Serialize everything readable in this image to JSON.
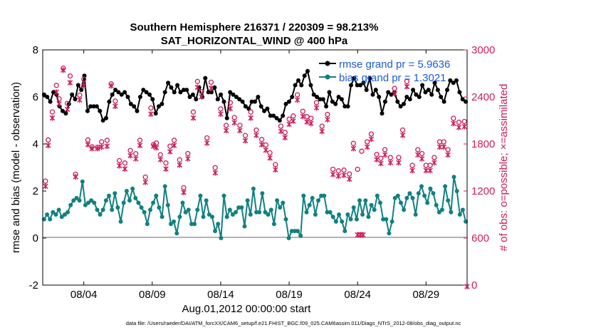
{
  "chart_data": {
    "type": "line",
    "title_line1": "Southern Hemisphere 216371 / 220309 = 98.213%",
    "title_line2": "SAT_HORIZONTAL_WIND @ 400 hPa",
    "xlabel": "Aug.01,2012 00:00:00 start",
    "ylabel_left": "rmse and bias (model - observation)",
    "ylabel_right": "# of obs: o=possible; ×=assimilated",
    "footer": "data file: /Users/raeder/DAI/ATM_forcXX/CAM6_setup/f.e21.FHIST_BGC.f09_025.CAM6assim.011/Diags_NTrS_2012-08/obs_diag_output.nc",
    "xlim": [
      1.0,
      32.0
    ],
    "ylim_left": [
      -2,
      8
    ],
    "ylim_right": [
      0,
      3000
    ],
    "x_ticks": [
      {
        "x": 4,
        "label": "08/04"
      },
      {
        "x": 9,
        "label": "08/09"
      },
      {
        "x": 14,
        "label": "08/14"
      },
      {
        "x": 19,
        "label": "08/19"
      },
      {
        "x": 24,
        "label": "08/24"
      },
      {
        "x": 29,
        "label": "08/29"
      }
    ],
    "y_ticks_left": [
      "-2",
      "0",
      "2",
      "4",
      "6",
      "8"
    ],
    "y_ticks_right": [
      "0",
      "600",
      "1200",
      "1800",
      "2400",
      "3000"
    ],
    "colors": {
      "rmse": "#000000",
      "bias": "#118080",
      "obs": "#cc1e58",
      "zero_line": "#b3b3b3",
      "legend_text": "#1a5cd8"
    },
    "series": [
      {
        "name": "rmse grand pr = 5.9636",
        "key": "rmse",
        "values": [
          6.1,
          6.0,
          5.8,
          6.2,
          6.1,
          5.6,
          5.4,
          5.3,
          5.7,
          6.1,
          5.9,
          6.5,
          6.3,
          6.9,
          5.4,
          5.6,
          5.6,
          5.6,
          5.4,
          5.0,
          5.1,
          5.8,
          6.1,
          6.3,
          6.2,
          6.1,
          6.2,
          6.0,
          5.7,
          5.6,
          5.4,
          6.0,
          6.3,
          6.2,
          6.1,
          5.9,
          5.3,
          5.6,
          5.7,
          6.2,
          6.6,
          6.4,
          6.2,
          6.5,
          6.2,
          6.3,
          6.3,
          6.0,
          6.1,
          5.9,
          6.4,
          6.0,
          6.8,
          6.2,
          6.2,
          6.4,
          5.9,
          6.1,
          5.8,
          5.1,
          6.2,
          6.1,
          6.0,
          5.9,
          5.8,
          5.6,
          5.5,
          5.8,
          5.8,
          6.0,
          5.6,
          5.4,
          5.5,
          5.2,
          5.2,
          5.1,
          5.0,
          5.2,
          5.7,
          5.8,
          6.0,
          6.5,
          6.7,
          6.5,
          6.9,
          7.1,
          6.5,
          6.1,
          6.0,
          5.9,
          5.9,
          5.6,
          6.2,
          5.8,
          5.7,
          6.0,
          5.9,
          5.6,
          5.6,
          6.5,
          6.8,
          6.5,
          6.5,
          6.6,
          6.3,
          6.8,
          6.1,
          6.3,
          6.0,
          5.3,
          5.8,
          6.2,
          6.1,
          6.2,
          5.8,
          5.6,
          5.7,
          6.0,
          5.9,
          6.3,
          6.1,
          6.0,
          6.5,
          6.2,
          6.3,
          6.1,
          6.6,
          6.3,
          6.0,
          5.8,
          6.3,
          6.7,
          6.6,
          6.7,
          6.2,
          5.9,
          5.8
        ]
      },
      {
        "name": "bias grand pr = 1.3021",
        "key": "bias",
        "values": [
          0.8,
          1.0,
          0.8,
          1.1,
          1.0,
          1.2,
          0.9,
          1.0,
          1.1,
          1.4,
          1.6,
          1.7,
          1.6,
          2.4,
          1.4,
          1.5,
          1.6,
          1.5,
          1.2,
          1.0,
          1.2,
          1.6,
          1.8,
          1.2,
          1.9,
          1.3,
          0.7,
          1.5,
          2.0,
          1.6,
          2.1,
          1.7,
          1.5,
          1.3,
          1.1,
          0.6,
          1.2,
          1.5,
          1.8,
          1.3,
          0.9,
          2.2,
          1.4,
          0.6,
          0.7,
          0.2,
          0.9,
          1.5,
          1.1,
          1.2,
          0.6,
          0.6,
          1.2,
          1.8,
          0.9,
          1.6,
          1.0,
          0.9,
          0.3,
          0.6,
          0.0,
          1.8,
          0.9,
          1.2,
          1.0,
          1.1,
          1.3,
          1.3,
          0.5,
          1.6,
          1.0,
          2.1,
          1.1,
          1.1,
          1.9,
          1.1,
          1.0,
          1.2,
          0.6,
          1.6,
          1.3,
          1.5,
          0.8,
          0.0,
          0.3,
          0.3,
          0.3,
          0.1,
          1.8,
          1.1,
          1.4,
          1.7,
          1.0,
          1.6,
          1.8,
          1.8,
          1.1,
          1.1,
          0.9,
          0.7,
          1.0,
          0.7,
          0.3,
          1.0,
          0.8,
          1.3,
          0.8,
          1.6,
          1.0,
          1.6,
          0.9,
          1.4,
          1.2,
          1.8,
          1.5,
          0.8,
          0.8,
          0.2,
          0.7,
          1.7,
          1.8,
          1.5,
          1.2,
          1.7,
          1.9,
          1.7,
          1.0,
          1.9,
          2.2,
          1.8,
          1.5,
          2.1,
          1.9,
          1.4,
          1.1,
          1.2,
          2.2,
          1.6,
          1.1,
          2.6,
          2.0,
          1.0,
          1.2,
          0.7
        ]
      }
    ],
    "obs_possible": [
      [
        1.2,
        1298
      ],
      [
        1.4,
        1825
      ],
      [
        1.7,
        2182
      ],
      [
        2.0,
        2520
      ],
      [
        2.2,
        2348
      ],
      [
        2.5,
        2740
      ],
      [
        2.8,
        2290
      ],
      [
        3.0,
        2640
      ],
      [
        3.4,
        1386
      ],
      [
        3.7,
        2396
      ],
      [
        4.0,
        2600
      ],
      [
        4.3,
        1825
      ],
      [
        4.6,
        1736
      ],
      [
        5.0,
        1731
      ],
      [
        5.3,
        1800
      ],
      [
        5.7,
        1820
      ],
      [
        6.0,
        2540
      ],
      [
        6.3,
        2320
      ],
      [
        6.6,
        1560
      ],
      [
        7.0,
        1530
      ],
      [
        7.4,
        1690
      ],
      [
        7.8,
        1648
      ],
      [
        8.1,
        1820
      ],
      [
        8.5,
        1350
      ],
      [
        8.9,
        2232
      ],
      [
        9.1,
        1765
      ],
      [
        9.3,
        1785
      ],
      [
        9.6,
        1635
      ],
      [
        10.0,
        1530
      ],
      [
        10.3,
        1745
      ],
      [
        10.6,
        1820
      ],
      [
        11.0,
        1570
      ],
      [
        11.3,
        1215
      ],
      [
        11.6,
        1650
      ],
      [
        12.0,
        2180
      ],
      [
        12.3,
        2570
      ],
      [
        12.6,
        2440
      ],
      [
        13.0,
        1850
      ],
      [
        13.3,
        2560
      ],
      [
        13.6,
        1470
      ],
      [
        14.0,
        2220
      ],
      [
        14.4,
        2010
      ],
      [
        14.7,
        2300
      ],
      [
        15.0,
        2110
      ],
      [
        15.4,
        2010
      ],
      [
        15.8,
        1880
      ],
      [
        16.2,
        2180
      ],
      [
        16.6,
        1950
      ],
      [
        17.0,
        1830
      ],
      [
        17.3,
        1760
      ],
      [
        17.6,
        1660
      ],
      [
        18.0,
        1510
      ],
      [
        18.4,
        2000
      ],
      [
        18.7,
        1920
      ],
      [
        19.0,
        2090
      ],
      [
        19.3,
        2130
      ],
      [
        19.6,
        2400
      ],
      [
        20.0,
        2190
      ],
      [
        20.3,
        2120
      ],
      [
        20.6,
        2100
      ],
      [
        21.0,
        2300
      ],
      [
        21.4,
        2000
      ],
      [
        21.8,
        2150
      ],
      [
        22.2,
        1450
      ],
      [
        22.6,
        1430
      ],
      [
        23.0,
        1440
      ],
      [
        23.4,
        1390
      ],
      [
        23.7,
        1780
      ],
      [
        24.0,
        1450
      ],
      [
        24.3,
        1680
      ],
      [
        24.7,
        1800
      ],
      [
        25.0,
        1900
      ],
      [
        25.4,
        1640
      ],
      [
        25.7,
        1590
      ],
      [
        26.0,
        1700
      ],
      [
        26.4,
        1600
      ],
      [
        26.7,
        2480
      ],
      [
        27.0,
        1600
      ],
      [
        27.3,
        1950
      ],
      [
        27.6,
        2570
      ],
      [
        28.0,
        1500
      ],
      [
        28.4,
        1700
      ],
      [
        28.7,
        1650
      ],
      [
        29.0,
        1500
      ],
      [
        29.3,
        1500
      ],
      [
        29.6,
        1600
      ],
      [
        30.0,
        1800
      ],
      [
        30.3,
        1800
      ],
      [
        30.6,
        1700
      ],
      [
        31.0,
        2100
      ],
      [
        31.4,
        2050
      ],
      [
        31.8,
        2060
      ]
    ],
    "obs_assimilated": [
      [
        1.2,
        1280
      ],
      [
        1.4,
        1800
      ],
      [
        1.7,
        2150
      ],
      [
        2.0,
        2480
      ],
      [
        2.2,
        2330
      ],
      [
        2.5,
        2760
      ],
      [
        2.8,
        2260
      ],
      [
        3.0,
        2600
      ],
      [
        3.4,
        1400
      ],
      [
        3.7,
        2380
      ],
      [
        4.0,
        2560
      ],
      [
        4.3,
        1810
      ],
      [
        4.6,
        1760
      ],
      [
        5.0,
        1760
      ],
      [
        5.3,
        1780
      ],
      [
        5.7,
        1790
      ],
      [
        6.0,
        2560
      ],
      [
        6.3,
        2300
      ],
      [
        6.6,
        1540
      ],
      [
        7.0,
        1500
      ],
      [
        7.4,
        1670
      ],
      [
        7.8,
        1630
      ],
      [
        8.1,
        1800
      ],
      [
        8.5,
        1330
      ],
      [
        8.9,
        2200
      ],
      [
        9.1,
        1790
      ],
      [
        9.3,
        1770
      ],
      [
        9.6,
        1620
      ],
      [
        10.0,
        1500
      ],
      [
        10.3,
        1720
      ],
      [
        10.6,
        1800
      ],
      [
        11.0,
        1550
      ],
      [
        11.3,
        1200
      ],
      [
        11.6,
        1630
      ],
      [
        12.0,
        2150
      ],
      [
        12.3,
        2540
      ],
      [
        12.6,
        2420
      ],
      [
        13.0,
        1830
      ],
      [
        13.3,
        2530
      ],
      [
        13.6,
        1450
      ],
      [
        14.0,
        2200
      ],
      [
        14.4,
        1990
      ],
      [
        14.7,
        2270
      ],
      [
        15.0,
        2090
      ],
      [
        15.4,
        1990
      ],
      [
        15.8,
        1860
      ],
      [
        16.2,
        2150
      ],
      [
        16.6,
        1930
      ],
      [
        17.0,
        1810
      ],
      [
        17.3,
        1740
      ],
      [
        17.6,
        1640
      ],
      [
        18.0,
        1490
      ],
      [
        18.4,
        1980
      ],
      [
        18.7,
        1900
      ],
      [
        19.0,
        2070
      ],
      [
        19.3,
        2110
      ],
      [
        19.6,
        2380
      ],
      [
        20.0,
        2170
      ],
      [
        20.3,
        2100
      ],
      [
        20.6,
        2080
      ],
      [
        21.0,
        2280
      ],
      [
        21.4,
        1980
      ],
      [
        21.8,
        2130
      ],
      [
        22.2,
        1430
      ],
      [
        22.6,
        1410
      ],
      [
        23.0,
        1420
      ],
      [
        23.4,
        1370
      ],
      [
        23.7,
        1760
      ],
      [
        24.0,
        660
      ],
      [
        24.2,
        660
      ],
      [
        24.4,
        660
      ],
      [
        24.7,
        1780
      ],
      [
        25.0,
        1880
      ],
      [
        25.4,
        1620
      ],
      [
        25.7,
        1570
      ],
      [
        26.0,
        1680
      ],
      [
        26.4,
        1580
      ],
      [
        26.7,
        2460
      ],
      [
        27.0,
        1580
      ],
      [
        27.3,
        1930
      ],
      [
        27.6,
        2550
      ],
      [
        28.0,
        1480
      ],
      [
        28.4,
        1680
      ],
      [
        28.7,
        1630
      ],
      [
        29.0,
        1480
      ],
      [
        29.3,
        1480
      ],
      [
        29.6,
        1580
      ],
      [
        30.0,
        1780
      ],
      [
        30.3,
        1780
      ],
      [
        30.6,
        1680
      ],
      [
        31.0,
        2080
      ],
      [
        31.4,
        2030
      ],
      [
        31.8,
        2040
      ],
      [
        32.0,
        0
      ]
    ]
  }
}
